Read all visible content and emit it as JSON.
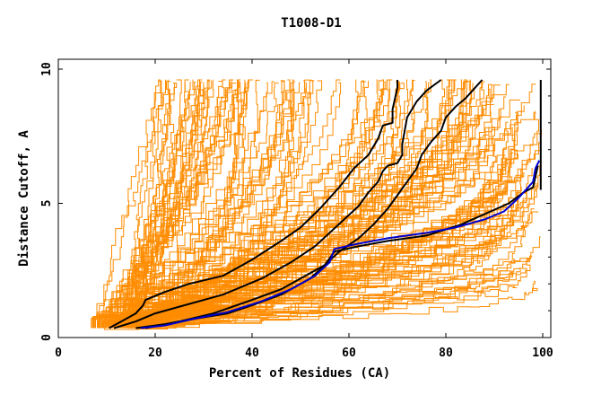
{
  "chart_data": {
    "type": "line",
    "title": "T1008-D1",
    "xlabel": "Percent of Residues (CA)",
    "ylabel": "Distance Cutoff, A",
    "xlim": [
      0,
      100
    ],
    "ylim": [
      0,
      10
    ],
    "x_ticks": [
      0,
      20,
      40,
      60,
      80,
      100
    ],
    "y_ticks": [
      0,
      5,
      10
    ],
    "x_tick_labels": [
      "0",
      "20",
      "40",
      "60",
      "80",
      "100"
    ],
    "y_tick_labels": [
      "0",
      "5",
      "10"
    ],
    "grid": false,
    "legend": "none",
    "colors": {
      "background": "#ffffff",
      "plot_border": "#000000",
      "models": "#ff8c00",
      "highlight_black": "#000000",
      "highlight_blue": "#0000cc"
    },
    "series": [
      {
        "color": "#000000",
        "x": [
          10.5,
          13,
          16,
          17.5,
          18,
          22,
          27,
          34,
          40,
          46,
          50,
          54,
          58,
          61,
          64,
          66,
          67,
          69,
          69,
          70,
          70
        ],
        "y": [
          0.35,
          0.6,
          0.9,
          1.2,
          1.4,
          1.7,
          2.0,
          2.3,
          2.9,
          3.6,
          4.1,
          4.8,
          5.6,
          6.3,
          6.8,
          7.4,
          7.9,
          8.0,
          8.5,
          9.3,
          9.6
        ]
      },
      {
        "color": "#000000",
        "x": [
          11.5,
          16,
          20,
          26,
          34,
          42,
          48,
          53,
          56,
          59,
          62,
          64,
          66,
          67,
          68,
          70,
          71,
          71,
          72,
          74,
          76,
          79
        ],
        "y": [
          0.35,
          0.6,
          0.9,
          1.2,
          1.6,
          2.2,
          2.8,
          3.4,
          3.9,
          4.4,
          4.9,
          5.4,
          5.8,
          6.2,
          6.4,
          6.5,
          6.8,
          7.2,
          8.2,
          8.8,
          9.2,
          9.6
        ]
      },
      {
        "color": "#000000",
        "x": [
          16,
          22,
          28,
          35,
          40,
          46,
          52,
          55,
          57,
          62,
          68,
          76,
          83,
          88,
          93,
          96,
          98,
          98.5,
          99
        ],
        "y": [
          0.35,
          0.5,
          0.7,
          0.9,
          1.2,
          1.6,
          2.2,
          2.7,
          3.2,
          3.4,
          3.6,
          3.8,
          4.2,
          4.6,
          5.0,
          5.4,
          5.6,
          6.0,
          6.4
        ]
      },
      {
        "color": "#000000",
        "x": [
          18,
          25,
          32,
          40,
          46,
          51,
          55,
          58,
          62,
          65,
          68,
          70,
          72,
          74,
          75,
          77,
          79,
          80,
          82,
          84,
          86,
          87.5
        ],
        "y": [
          0.35,
          0.6,
          0.9,
          1.4,
          1.8,
          2.3,
          2.7,
          3.2,
          3.7,
          4.2,
          4.8,
          5.3,
          5.8,
          6.3,
          6.8,
          7.3,
          7.7,
          8.2,
          8.6,
          8.9,
          9.3,
          9.6
        ]
      },
      {
        "color": "#000000",
        "x": [
          99.6,
          99.6,
          99.6,
          99.6
        ],
        "y": [
          5.5,
          7.0,
          8.5,
          9.6
        ]
      },
      {
        "color": "#0000cc",
        "x": [
          17,
          22,
          28,
          35,
          42,
          48,
          53,
          56,
          57,
          62,
          68,
          76,
          82,
          88,
          92,
          95,
          97,
          98,
          98.5,
          99.3
        ],
        "y": [
          0.35,
          0.45,
          0.7,
          0.95,
          1.35,
          1.8,
          2.3,
          2.8,
          3.3,
          3.5,
          3.7,
          3.9,
          4.1,
          4.4,
          4.7,
          5.2,
          5.6,
          5.8,
          6.3,
          6.6
        ]
      }
    ]
  }
}
